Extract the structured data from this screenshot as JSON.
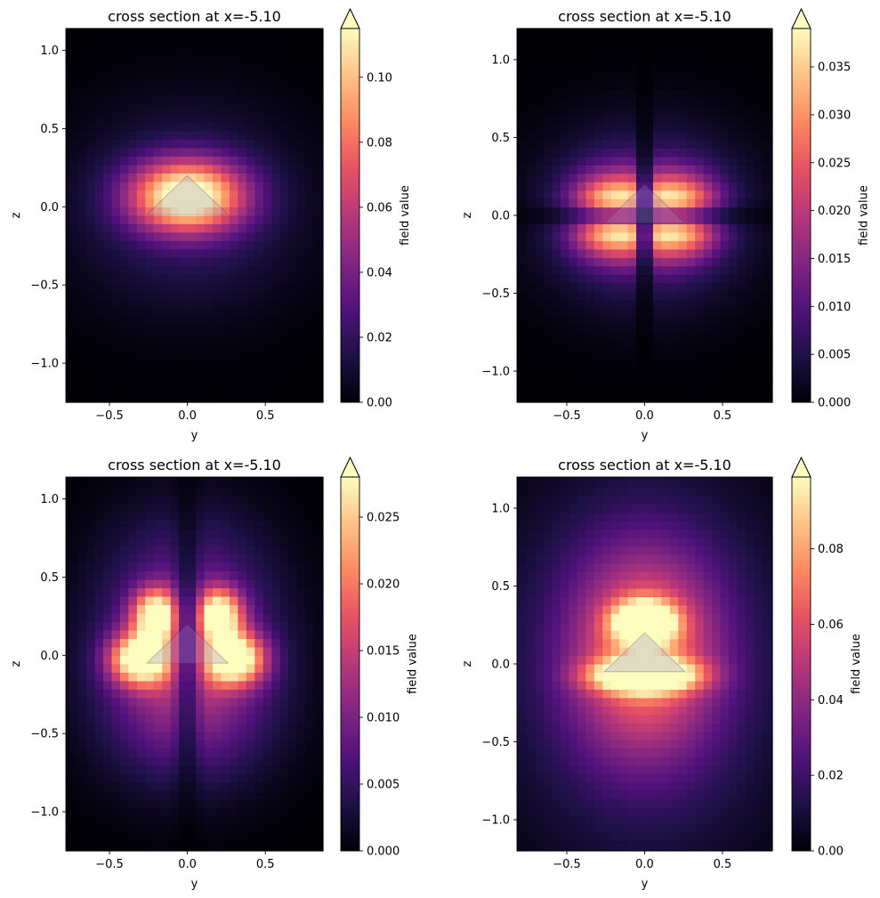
{
  "chart_data": [
    {
      "type": "heatmap",
      "title": "cross section at x=-5.10",
      "xlabel": "y",
      "ylabel": "z",
      "xlim": [
        -0.78,
        0.87
      ],
      "ylim": [
        -1.25,
        1.14
      ],
      "xticks": [
        -0.5,
        0.0,
        0.5
      ],
      "xtick_labels": [
        "−0.5",
        "0.0",
        "0.5"
      ],
      "yticks": [
        -1.0,
        -0.5,
        0.0,
        0.5,
        1.0
      ],
      "ytick_labels": [
        "−1.0",
        "−0.5",
        "0.0",
        "0.5",
        "1.0"
      ],
      "colorbar": {
        "label": "field value",
        "vmin": 0,
        "vmax": 0.115,
        "extend": "max",
        "ticks": [
          0.0,
          0.02,
          0.04,
          0.06,
          0.08,
          0.1
        ],
        "tick_labels": [
          "0.00",
          "0.02",
          "0.04",
          "0.06",
          "0.08",
          "0.10"
        ]
      },
      "colormap": "magma",
      "field_pattern": "fundamental",
      "structure": "triangle",
      "grid": false
    },
    {
      "type": "heatmap",
      "title": "cross section at x=-5.10",
      "xlabel": "y",
      "ylabel": "z",
      "xlim": [
        -0.82,
        0.82
      ],
      "ylim": [
        -1.2,
        1.2
      ],
      "xticks": [
        -0.5,
        0.0,
        0.5
      ],
      "xtick_labels": [
        "−0.5",
        "0.0",
        "0.5"
      ],
      "yticks": [
        -1.0,
        -0.5,
        0.0,
        0.5,
        1.0
      ],
      "ytick_labels": [
        "−1.0",
        "−0.5",
        "0.0",
        "0.5",
        "1.0"
      ],
      "colorbar": {
        "label": "field value",
        "vmin": 0,
        "vmax": 0.039,
        "extend": "max",
        "ticks": [
          0.0,
          0.005,
          0.01,
          0.015,
          0.02,
          0.025,
          0.03,
          0.035
        ],
        "tick_labels": [
          "0.000",
          "0.005",
          "0.010",
          "0.015",
          "0.020",
          "0.025",
          "0.030",
          "0.035"
        ]
      },
      "colormap": "magma",
      "field_pattern": "cross",
      "structure": "triangle",
      "grid": false
    },
    {
      "type": "heatmap",
      "title": "cross section at x=-5.10",
      "xlabel": "y",
      "ylabel": "z",
      "xlim": [
        -0.78,
        0.87
      ],
      "ylim": [
        -1.25,
        1.14
      ],
      "xticks": [
        -0.5,
        0.0,
        0.5
      ],
      "xtick_labels": [
        "−0.5",
        "0.0",
        "0.5"
      ],
      "yticks": [
        -1.0,
        -0.5,
        0.0,
        0.5,
        1.0
      ],
      "ytick_labels": [
        "−1.0",
        "−0.5",
        "0.0",
        "0.5",
        "1.0"
      ],
      "colorbar": {
        "label": "field value",
        "vmin": 0,
        "vmax": 0.028,
        "extend": "max",
        "ticks": [
          0.0,
          0.005,
          0.01,
          0.015,
          0.02,
          0.025
        ],
        "tick_labels": [
          "0.000",
          "0.005",
          "0.010",
          "0.015",
          "0.020",
          "0.025"
        ]
      },
      "colormap": "magma",
      "field_pattern": "quad",
      "structure": "triangle",
      "grid": false
    },
    {
      "type": "heatmap",
      "title": "cross section at x=-5.10",
      "xlabel": "y",
      "ylabel": "z",
      "xlim": [
        -0.82,
        0.82
      ],
      "ylim": [
        -1.2,
        1.2
      ],
      "xticks": [
        -0.5,
        0.0,
        0.5
      ],
      "xtick_labels": [
        "−0.5",
        "0.0",
        "0.5"
      ],
      "yticks": [
        -1.0,
        -0.5,
        0.0,
        0.5,
        1.0
      ],
      "ytick_labels": [
        "−1.0",
        "−0.5",
        "0.0",
        "0.5",
        "1.0"
      ],
      "colorbar": {
        "label": "field value",
        "vmin": 0,
        "vmax": 0.099,
        "extend": "max",
        "ticks": [
          0.0,
          0.02,
          0.04,
          0.06,
          0.08
        ],
        "tick_labels": [
          "0.00",
          "0.02",
          "0.04",
          "0.06",
          "0.08"
        ]
      },
      "colormap": "magma",
      "field_pattern": "broad",
      "structure": "triangle",
      "grid": false
    }
  ]
}
